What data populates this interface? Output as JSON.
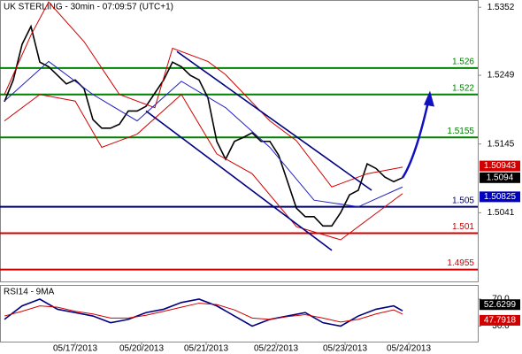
{
  "chart_data": [
    {
      "type": "line",
      "title": "UK STERLING - 30min - 07:09:57 (UTC+1)",
      "x": [
        0,
        1,
        2,
        3,
        4,
        5,
        6,
        7,
        8,
        9,
        10,
        11,
        12,
        13,
        14,
        15,
        16,
        17,
        18,
        19,
        20,
        21,
        22,
        23,
        24,
        25,
        26,
        27,
        28,
        29,
        30,
        31,
        32,
        33,
        34,
        35,
        36,
        37,
        38,
        39,
        40,
        41,
        42,
        43,
        44,
        45
      ],
      "xlim": [
        -0.5,
        53.5
      ],
      "xticks": [
        {
          "value": 8,
          "label": "05/17/2013"
        },
        {
          "value": 15.5,
          "label": "05/20/2013"
        },
        {
          "value": 22.8,
          "label": "05/21/2013"
        },
        {
          "value": 30.7,
          "label": "05/22/2013"
        },
        {
          "value": 38.5,
          "label": "05/23/2013"
        },
        {
          "value": 45.7,
          "label": "05/24/2013"
        }
      ],
      "ylim": [
        1.4937,
        1.5363
      ],
      "yticks": [
        1.5352,
        1.5249,
        1.5145,
        1.5041
      ],
      "series": [
        {
          "color": "#000000",
          "values": [
            1.5209,
            1.5242,
            1.5296,
            1.5323,
            1.5269,
            1.5262,
            1.5249,
            1.5236,
            1.5242,
            1.5229,
            1.5182,
            1.5169,
            1.5169,
            1.5175,
            1.5195,
            1.5195,
            1.5202,
            1.5222,
            1.5242,
            1.5269,
            1.5262,
            1.5249,
            1.5242,
            1.5215,
            1.5149,
            1.5122,
            1.5149,
            1.5155,
            1.5162,
            1.5149,
            1.5149,
            1.5128,
            1.5088,
            1.5048,
            1.5035,
            1.5035,
            1.5021,
            1.5021,
            1.5041,
            1.5068,
            1.5075,
            1.5115,
            1.5108,
            1.5095,
            1.5088,
            1.5094
          ]
        },
        {
          "color": "#d00000",
          "x": [
            0,
            3,
            5,
            9,
            13,
            17,
            19,
            23,
            25,
            30,
            33,
            37,
            41,
            45
          ],
          "values": [
            1.522,
            1.531,
            1.536,
            1.53,
            1.522,
            1.52,
            1.529,
            1.527,
            1.525,
            1.518,
            1.515,
            1.508,
            1.51,
            1.511
          ]
        },
        {
          "color": "#d00000",
          "x": [
            0,
            4,
            8,
            11,
            15,
            20,
            24,
            28,
            33,
            38,
            42,
            45
          ],
          "values": [
            1.518,
            1.522,
            1.521,
            1.514,
            1.516,
            1.522,
            1.513,
            1.51,
            1.502,
            1.5,
            1.504,
            1.507
          ]
        },
        {
          "color": "#2020c0",
          "x": [
            0,
            5,
            10,
            15,
            20,
            25,
            30,
            35,
            40,
            45
          ],
          "values": [
            1.521,
            1.527,
            1.522,
            1.518,
            1.524,
            1.52,
            1.514,
            1.506,
            1.505,
            1.508
          ]
        },
        {
          "color": "#000080",
          "x": [
            19.5,
            41.5
          ],
          "values": [
            1.5285,
            1.5075
          ]
        },
        {
          "color": "#000080",
          "x": [
            16,
            37
          ],
          "values": [
            1.5195,
            1.4984
          ]
        }
      ],
      "arrow": {
        "color": "#1010c0",
        "x": [
          45,
          46.5,
          48
        ],
        "values": [
          1.5094,
          1.5125,
          1.5215
        ]
      },
      "levels": [
        {
          "value": 1.526,
          "color": "#008000"
        },
        {
          "value": 1.522,
          "color": "#008000"
        },
        {
          "value": 1.5155,
          "color": "#008000"
        },
        {
          "value": 1.505,
          "color": "#000080"
        },
        {
          "value": 1.501,
          "color": "#d00000"
        },
        {
          "value": 1.4955,
          "color": "#d00000"
        }
      ],
      "price_labels": [
        {
          "value": 1.50943,
          "color": "#d00000"
        },
        {
          "value": 1.5094,
          "color": "#000000"
        },
        {
          "value": 1.50825,
          "color": "#0000c0"
        }
      ]
    },
    {
      "type": "line",
      "title": "RSI14 - 9MA",
      "x": [
        0,
        2,
        4,
        6,
        8,
        10,
        12,
        14,
        16,
        18,
        20,
        22,
        24,
        26,
        28,
        30,
        32,
        34,
        36,
        38,
        40,
        42,
        44,
        45
      ],
      "xlim": [
        -0.5,
        53.5
      ],
      "ylim": [
        7,
        91
      ],
      "yticks": [
        {
          "value": 70,
          "label": "70.0"
        },
        {
          "value": 30,
          "label": "30.0"
        }
      ],
      "series": [
        {
          "color": "#000080",
          "values": [
            40,
            60,
            70,
            55,
            50,
            45,
            35,
            40,
            50,
            55,
            65,
            70,
            60,
            45,
            30,
            40,
            45,
            50,
            35,
            30,
            45,
            55,
            60,
            52.6299
          ]
        },
        {
          "color": "#d00000",
          "values": [
            45,
            52,
            60,
            58,
            52,
            48,
            42,
            42,
            46,
            52,
            58,
            64,
            62,
            54,
            42,
            40,
            44,
            47,
            42,
            36,
            40,
            48,
            54,
            47.7918
          ]
        }
      ],
      "price_labels": [
        {
          "value": 52.6299,
          "color": "#000000"
        },
        {
          "value": 47.7918,
          "color": "#d00000"
        }
      ]
    }
  ]
}
